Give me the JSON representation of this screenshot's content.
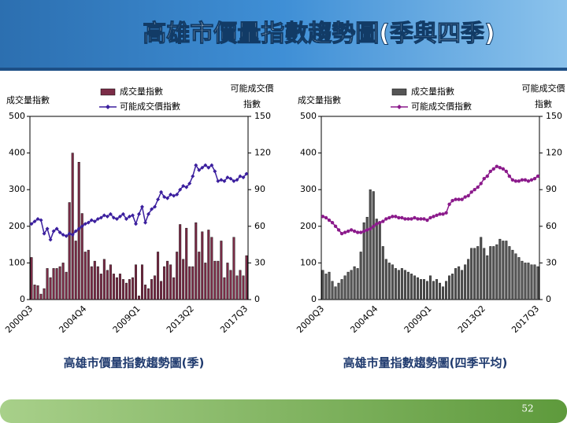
{
  "title": "高雄市價量指數趨勢圖(季與四季)",
  "page_number": "52",
  "chart_data": [
    {
      "type": "combo",
      "title": "高雄市價量指數趨勢圖(季)",
      "y_label": "成交量指數",
      "y2_label": [
        "可能成交價",
        "指數"
      ],
      "categories": [
        "2000Q3",
        null,
        null,
        null,
        null,
        null,
        null,
        null,
        null,
        null,
        null,
        null,
        null,
        null,
        null,
        null,
        null,
        "2004Q4",
        null,
        null,
        null,
        null,
        null,
        null,
        null,
        null,
        null,
        null,
        null,
        null,
        null,
        null,
        null,
        null,
        "2009Q1",
        null,
        null,
        null,
        null,
        null,
        null,
        null,
        null,
        null,
        null,
        null,
        null,
        null,
        null,
        null,
        null,
        "2013Q2",
        null,
        null,
        null,
        null,
        null,
        null,
        null,
        null,
        null,
        null,
        null,
        null,
        null,
        null,
        null,
        null,
        "2017Q3"
      ],
      "ylim": [
        0,
        500
      ],
      "yticks": [
        0,
        100,
        200,
        300,
        400,
        500
      ],
      "y2lim": [
        0,
        150
      ],
      "y2ticks": [
        0,
        30,
        60,
        90,
        120,
        150
      ],
      "series": [
        {
          "name": "成交量指數",
          "type": "bar",
          "color": "#7b2c47",
          "values": [
            115,
            40,
            38,
            15,
            30,
            85,
            60,
            85,
            85,
            90,
            100,
            75,
            265,
            400,
            160,
            375,
            235,
            130,
            135,
            90,
            105,
            90,
            70,
            110,
            80,
            95,
            70,
            60,
            70,
            55,
            45,
            55,
            60,
            95,
            10,
            95,
            40,
            30,
            55,
            65,
            130,
            50,
            90,
            105,
            95,
            60,
            130,
            205,
            110,
            195,
            90,
            90,
            210,
            130,
            185,
            100,
            190,
            170,
            105,
            105,
            160,
            60,
            100,
            80,
            170,
            65,
            80,
            65,
            120
          ]
        },
        {
          "name": "可能成交價指數",
          "type": "line",
          "axis": "y2",
          "marker": "diamond",
          "color": "#3b1f9e",
          "values": [
            62,
            64,
            66,
            65,
            54,
            58,
            49,
            56,
            58,
            55,
            53,
            52,
            54,
            53,
            56,
            58,
            60,
            62,
            63,
            65,
            64,
            66,
            67,
            69,
            68,
            70,
            67,
            66,
            68,
            70,
            66,
            68,
            69,
            62,
            70,
            76,
            63,
            70,
            74,
            76,
            82,
            88,
            84,
            83,
            86,
            85,
            86,
            90,
            93,
            92,
            95,
            101,
            110,
            106,
            108,
            110,
            108,
            110,
            105,
            97,
            98,
            97,
            100,
            99,
            97,
            98,
            101,
            100,
            103
          ]
        }
      ]
    },
    {
      "type": "combo",
      "title": "高雄市量指數趨勢圖(四季平均)",
      "y_label": "成交量指數",
      "y2_label": [
        "可能成交價",
        "指數"
      ],
      "categories": [
        "2000Q3",
        null,
        null,
        null,
        null,
        null,
        null,
        null,
        null,
        null,
        null,
        null,
        null,
        null,
        null,
        null,
        null,
        "2004Q4",
        null,
        null,
        null,
        null,
        null,
        null,
        null,
        null,
        null,
        null,
        null,
        null,
        null,
        null,
        null,
        null,
        "2009Q1",
        null,
        null,
        null,
        null,
        null,
        null,
        null,
        null,
        null,
        null,
        null,
        null,
        null,
        null,
        null,
        null,
        "2013Q2",
        null,
        null,
        null,
        null,
        null,
        null,
        null,
        null,
        null,
        null,
        null,
        null,
        null,
        null,
        null,
        null,
        "2017Q3"
      ],
      "ylim": [
        0,
        500
      ],
      "yticks": [
        0,
        100,
        200,
        300,
        400,
        500
      ],
      "y2lim": [
        0,
        150
      ],
      "y2ticks": [
        0,
        30,
        60,
        90,
        120,
        150
      ],
      "series": [
        {
          "name": "成交量指數",
          "type": "bar",
          "color": "#555555",
          "values": [
            80,
            70,
            75,
            50,
            35,
            45,
            55,
            65,
            75,
            80,
            90,
            85,
            130,
            210,
            225,
            300,
            295,
            220,
            210,
            145,
            110,
            100,
            95,
            85,
            80,
            85,
            80,
            75,
            70,
            65,
            60,
            55,
            55,
            50,
            65,
            50,
            55,
            45,
            35,
            50,
            65,
            70,
            85,
            90,
            80,
            95,
            110,
            140,
            140,
            145,
            170,
            140,
            120,
            145,
            145,
            150,
            165,
            160,
            160,
            145,
            135,
            125,
            115,
            105,
            100,
            100,
            95,
            95,
            90
          ]
        },
        {
          "name": "可能成交價指數",
          "type": "line",
          "axis": "y2",
          "marker": "circle",
          "color": "#8b1a8b",
          "values": [
            68,
            67,
            65,
            63,
            60,
            57,
            54,
            55,
            56,
            57,
            56,
            55,
            55,
            56,
            57,
            58,
            60,
            62,
            63,
            64,
            66,
            67,
            68,
            68,
            67,
            67,
            66,
            66,
            66,
            67,
            66,
            66,
            66,
            65,
            67,
            68,
            69,
            70,
            70,
            71,
            78,
            81,
            82,
            82,
            82,
            84,
            85,
            88,
            90,
            92,
            95,
            99,
            101,
            105,
            107,
            109,
            108,
            107,
            105,
            101,
            98,
            97,
            97,
            98,
            98,
            97,
            98,
            99,
            101
          ]
        }
      ]
    }
  ]
}
